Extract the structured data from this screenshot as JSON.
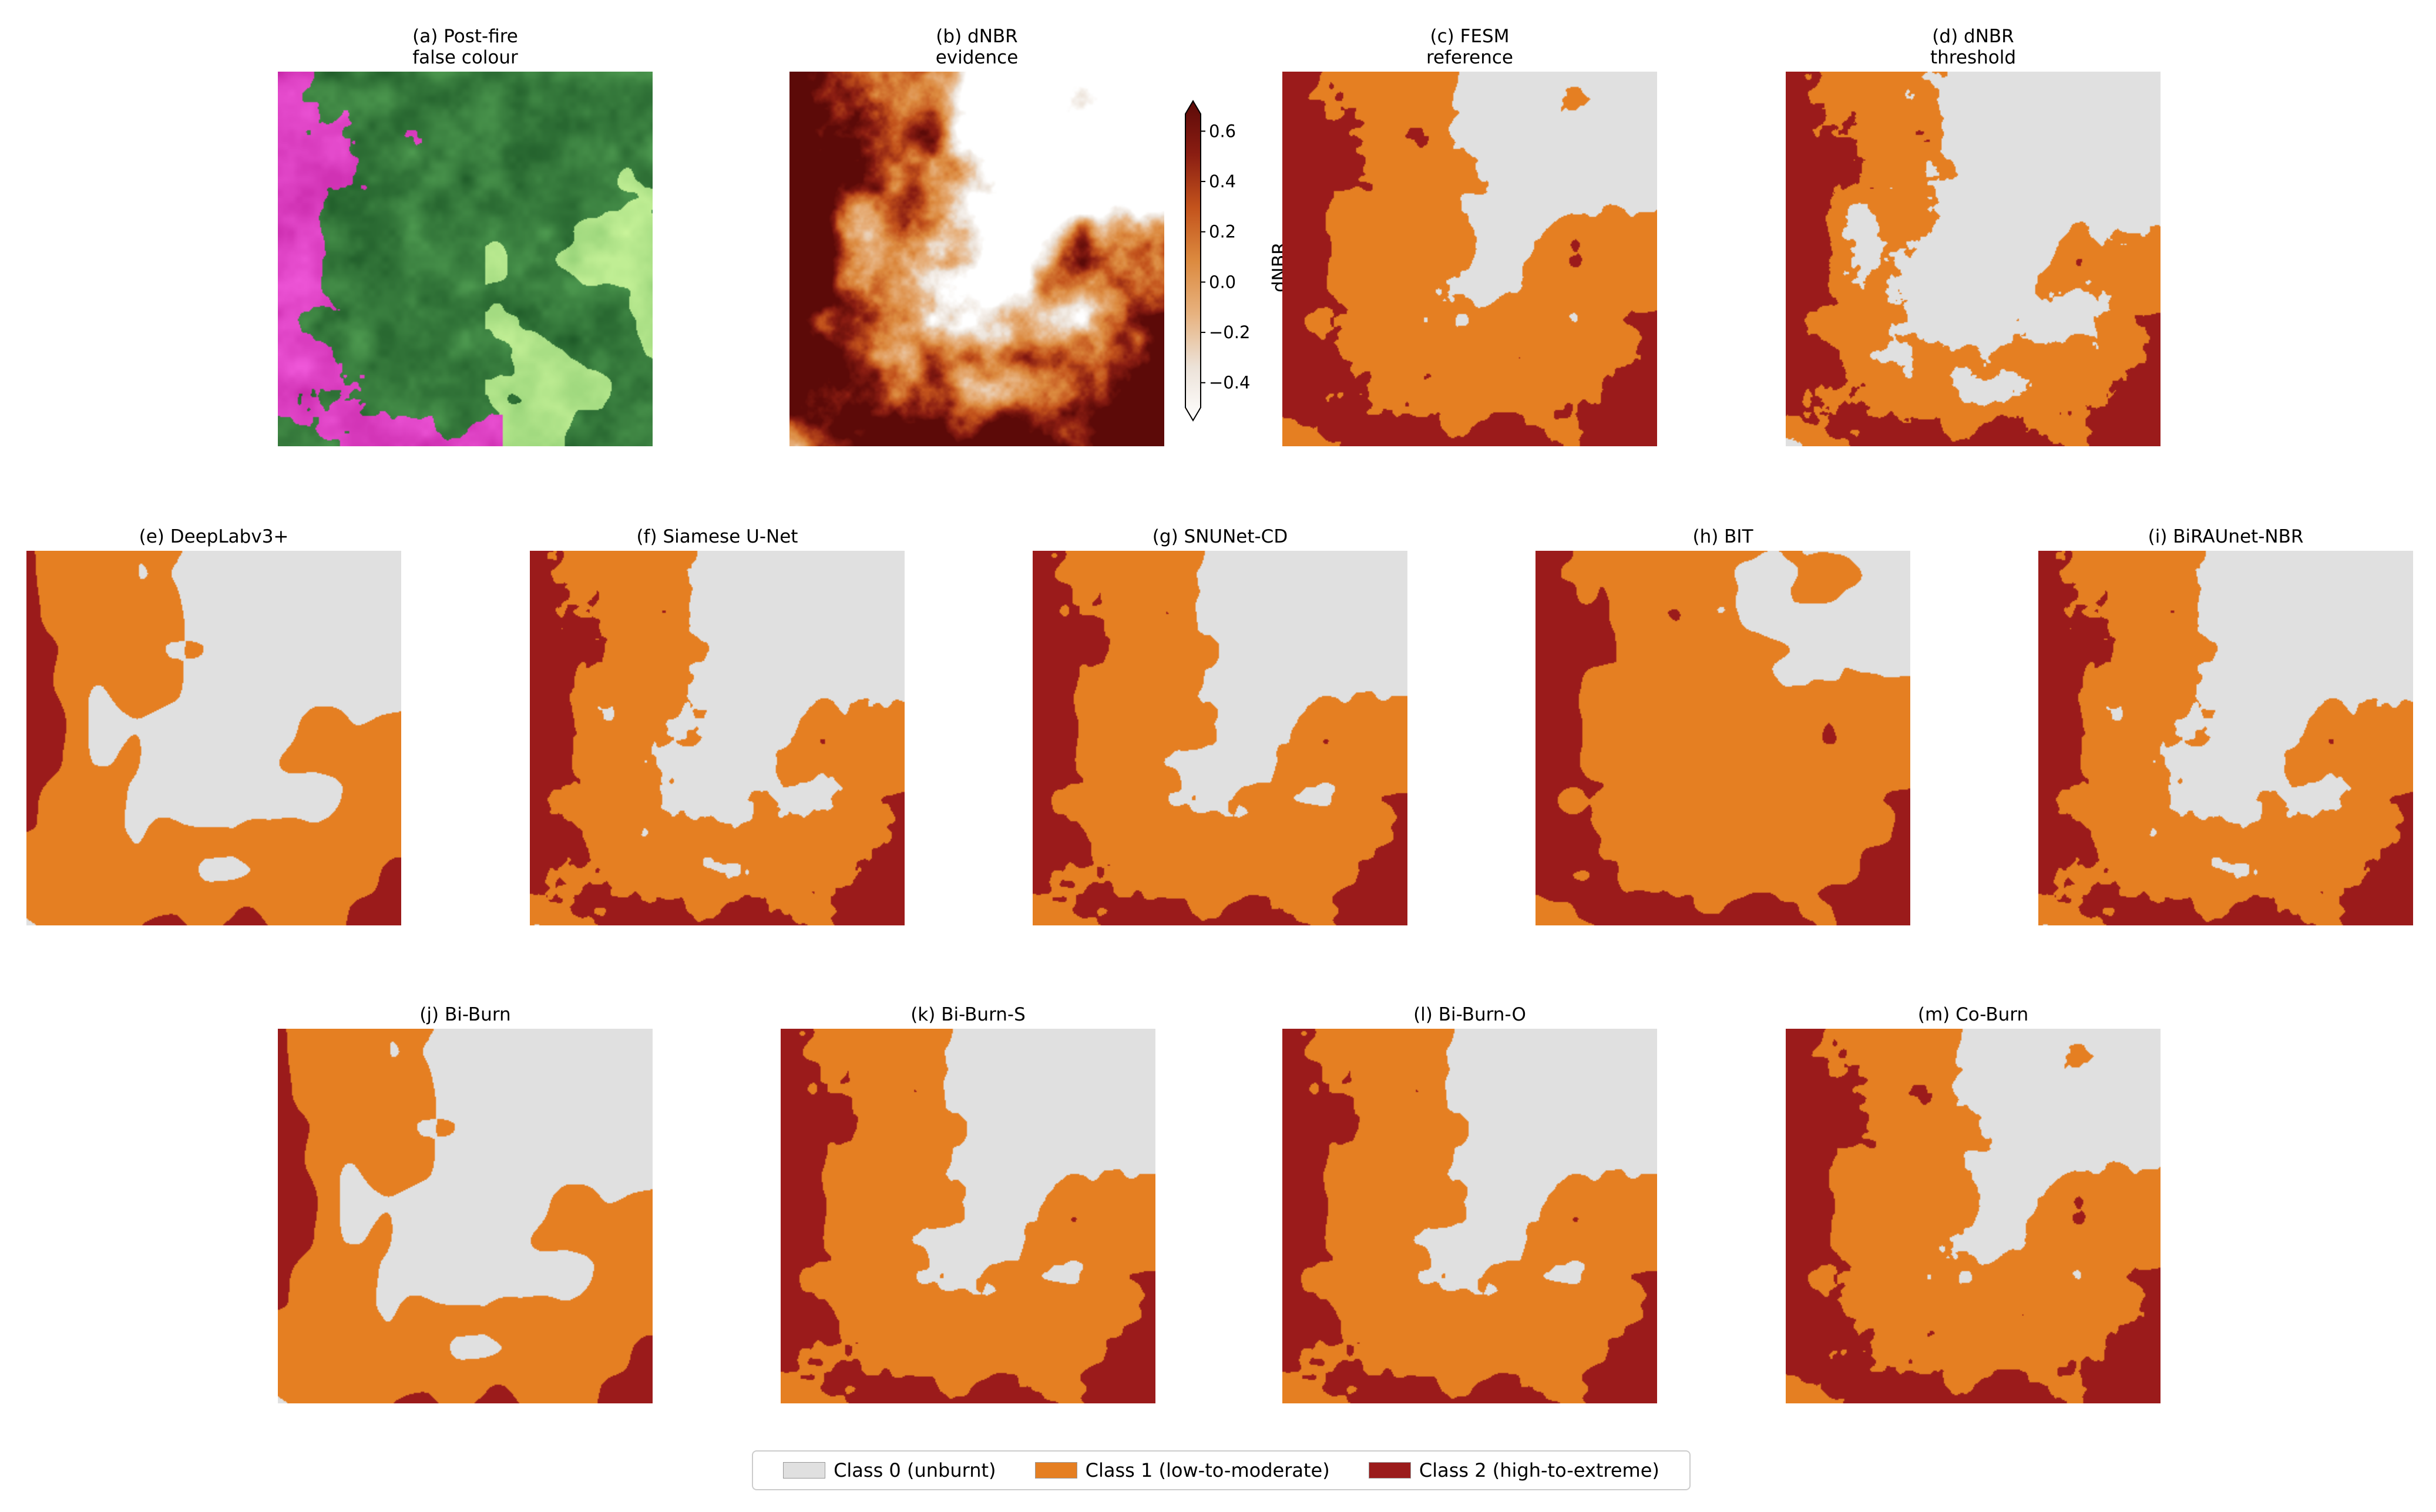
{
  "figure": {
    "panels": [
      {
        "id": "a",
        "title_lines": [
          "(a) Post-fire",
          "false colour"
        ],
        "kind": "falsecolour"
      },
      {
        "id": "b",
        "title_lines": [
          "(b) dNBR",
          "evidence"
        ],
        "kind": "dnbr"
      },
      {
        "id": "c",
        "title_lines": [
          "(c) FESM",
          "reference"
        ],
        "kind": "classes",
        "coverage": "high"
      },
      {
        "id": "d",
        "title_lines": [
          "(d) dNBR",
          "threshold"
        ],
        "kind": "classes",
        "coverage": "low"
      },
      {
        "id": "e",
        "title_lines": [
          "(e) DeepLabv3+"
        ],
        "kind": "classes",
        "coverage": "smooth"
      },
      {
        "id": "f",
        "title_lines": [
          "(f) Siamese U-Net"
        ],
        "kind": "classes",
        "coverage": "patchy"
      },
      {
        "id": "g",
        "title_lines": [
          "(g) SNUNet-CD"
        ],
        "kind": "classes",
        "coverage": "mid"
      },
      {
        "id": "h",
        "title_lines": [
          "(h) BIT"
        ],
        "kind": "classes",
        "coverage": "full"
      },
      {
        "id": "i",
        "title_lines": [
          "(i) BiRAUnet-NBR"
        ],
        "kind": "classes",
        "coverage": "patchy"
      },
      {
        "id": "j",
        "title_lines": [
          "(j) Bi-Burn"
        ],
        "kind": "classes",
        "coverage": "smooth"
      },
      {
        "id": "k",
        "title_lines": [
          "(k) Bi-Burn-S"
        ],
        "kind": "classes",
        "coverage": "mid"
      },
      {
        "id": "l",
        "title_lines": [
          "(l) Bi-Burn-O"
        ],
        "kind": "classes",
        "coverage": "mid"
      },
      {
        "id": "m",
        "title_lines": [
          "(m) Co-Burn"
        ],
        "kind": "classes",
        "coverage": "high"
      }
    ],
    "colorbar": {
      "label": "dNBR",
      "ticks": [
        "0.6",
        "0.4",
        "0.2",
        "0.0",
        "−0.2",
        "−0.4"
      ],
      "tick_values": [
        0.6,
        0.4,
        0.2,
        0.0,
        -0.2,
        -0.4
      ],
      "range": [
        -0.55,
        0.72
      ],
      "colors": [
        "#ffffff",
        "#ece2d8",
        "#e7b27f",
        "#dc8a3f",
        "#c3531c",
        "#8a1d12",
        "#5c0a08"
      ]
    },
    "legend": [
      {
        "label": "Class 0 (unburnt)",
        "color": "#e0e0e0"
      },
      {
        "label": "Class 1 (low-to-moderate)",
        "color": "#e57f22"
      },
      {
        "label": "Class 2 (high-to-extreme)",
        "color": "#9b1b1b"
      }
    ]
  }
}
